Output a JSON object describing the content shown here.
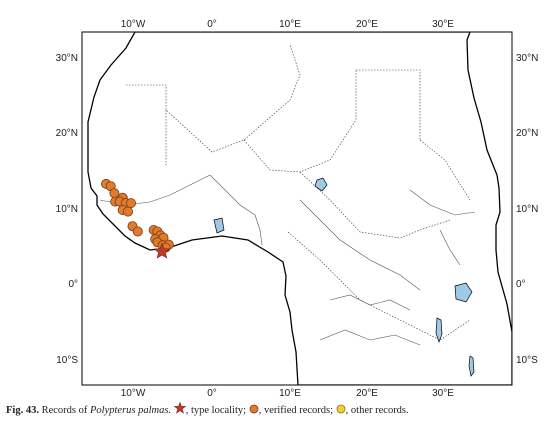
{
  "map": {
    "lon_ticks": [
      "10°W",
      "0°",
      "10°E",
      "20°E",
      "30°E"
    ],
    "lat_ticks_left": [
      "30°N",
      "20°N",
      "10°N",
      "0°",
      "10°S"
    ],
    "lat_ticks_right": [
      "30°N",
      "20°N",
      "10°N",
      "0°",
      "10°S"
    ],
    "extent": {
      "lon": [
        -18,
        39
      ],
      "lat": [
        -13,
        33
      ]
    },
    "colors": {
      "land": "#ffffff",
      "ocean": "#ffffff",
      "coast": "#000000",
      "rivers": "#555555",
      "lakes": "#9ec9e8",
      "type_locality": "#c0392b",
      "verified": "#e07a2e",
      "other": "#f4d03f"
    },
    "type_locality": {
      "lon": -7.4,
      "lat": 4.4
    },
    "verified_records": [
      {
        "lon": -14.8,
        "lat": 13.2
      },
      {
        "lon": -14.2,
        "lat": 12.9
      },
      {
        "lon": -13.7,
        "lat": 12.0
      },
      {
        "lon": -12.6,
        "lat": 11.4
      },
      {
        "lon": -13.6,
        "lat": 10.9
      },
      {
        "lon": -13.0,
        "lat": 10.9
      },
      {
        "lon": -12.2,
        "lat": 10.7
      },
      {
        "lon": -11.5,
        "lat": 10.7
      },
      {
        "lon": -12.6,
        "lat": 9.8
      },
      {
        "lon": -11.9,
        "lat": 9.6
      },
      {
        "lon": -11.3,
        "lat": 7.7
      },
      {
        "lon": -10.6,
        "lat": 7.0
      },
      {
        "lon": -8.5,
        "lat": 7.2
      },
      {
        "lon": -8.0,
        "lat": 7.0
      },
      {
        "lon": -7.6,
        "lat": 6.5
      },
      {
        "lon": -8.3,
        "lat": 6.0
      },
      {
        "lon": -7.2,
        "lat": 6.2
      },
      {
        "lon": -8.0,
        "lat": 5.6
      },
      {
        "lon": -7.3,
        "lat": 5.2
      },
      {
        "lon": -6.5,
        "lat": 5.3
      },
      {
        "lon": -6.9,
        "lat": 4.9
      }
    ],
    "other_records": []
  },
  "caption": {
    "fig": "Fig. 43.",
    "text1": "Records of",
    "species": "Polypterus palmas.",
    "text_type": ", type locality;",
    "text_verified": ", verified records;",
    "text_other": ", other records."
  }
}
